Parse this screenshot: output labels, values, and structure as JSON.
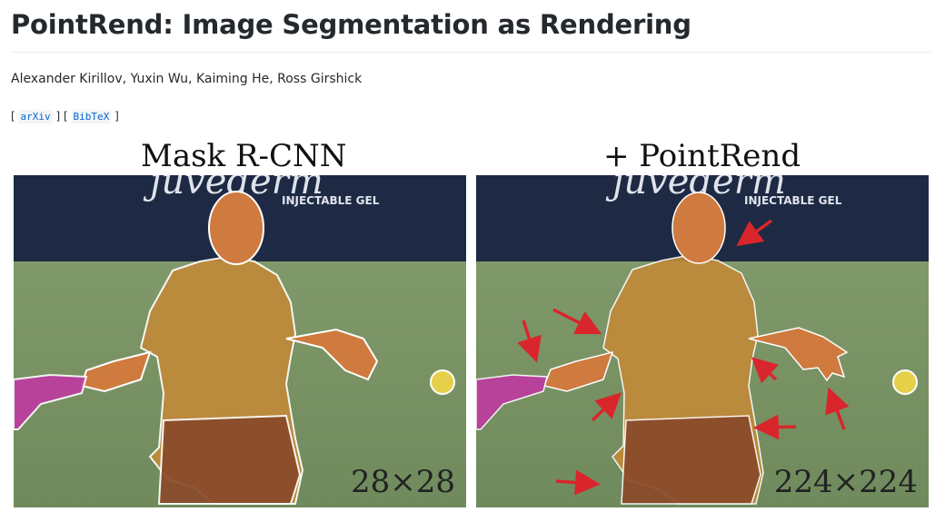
{
  "page": {
    "title": "PointRend: Image Segmentation as Rendering",
    "authors": "Alexander Kirillov, Yuxin Wu, Kaiming He, Ross Girshick",
    "links": [
      {
        "label": "arXiv"
      },
      {
        "label": "BibTeX"
      }
    ],
    "bracket_open": "[",
    "bracket_close": "]"
  },
  "figure": {
    "left": {
      "caption": "Mask R-CNN",
      "resolution": "28×28",
      "banner_script": "juvéderm",
      "banner_sub": "INJECTABLE GEL"
    },
    "right": {
      "caption": "+ PointRend",
      "resolution": "224×224",
      "banner_script": "juvéderm",
      "banner_sub": "INJECTABLE GEL"
    }
  },
  "colors": {
    "link": "#0366d6",
    "court": "#7f9a6a",
    "banner": "#1e2a44",
    "mask_shirt": "#c08a3a",
    "mask_skin": "#cf7a3e",
    "mask_shorts": "#8a4a2a",
    "racket": "#c03aa0",
    "ball": "#e6d04a",
    "arrow": "#d8262c"
  }
}
